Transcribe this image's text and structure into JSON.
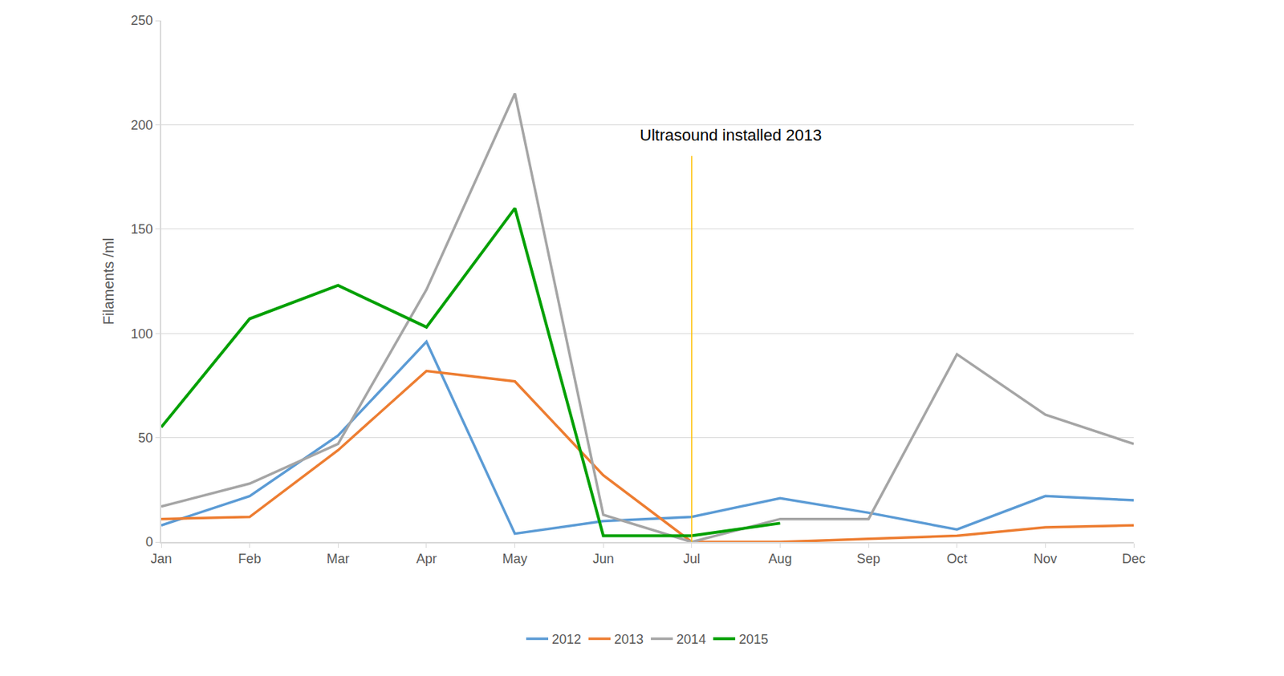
{
  "chart_data": {
    "type": "line",
    "y_label": "Filaments /ml",
    "categories": [
      "Jan",
      "Feb",
      "Mar",
      "Apr",
      "May",
      "Jun",
      "Jul",
      "Aug",
      "Sep",
      "Oct",
      "Nov",
      "Dec"
    ],
    "series": [
      {
        "name": "2012",
        "color": "#5b9bd5",
        "values": [
          8,
          22,
          51,
          96,
          4,
          10,
          12,
          21,
          14,
          6,
          22,
          20
        ]
      },
      {
        "name": "2013",
        "color": "#ed7d31",
        "values": [
          11,
          12,
          44,
          82,
          77,
          32,
          0,
          0,
          1.5,
          3,
          7,
          8
        ]
      },
      {
        "name": "2014",
        "color": "#a5a5a5",
        "values": [
          17,
          28,
          47,
          121,
          215,
          13,
          0,
          11,
          11,
          90,
          61,
          47
        ]
      },
      {
        "name": "2015",
        "color": "#00a000",
        "values": [
          55,
          107,
          123,
          103,
          160,
          3,
          3,
          9,
          null,
          null,
          null,
          null
        ]
      }
    ],
    "ylim": [
      0,
      250
    ],
    "yticks": [
      0,
      50,
      100,
      150,
      200,
      250
    ],
    "grid": true,
    "legend": "bottom",
    "annotations": [
      {
        "text": "Ultrasound installed 2013",
        "x": "Jul",
        "color": "#ffc000"
      }
    ]
  }
}
